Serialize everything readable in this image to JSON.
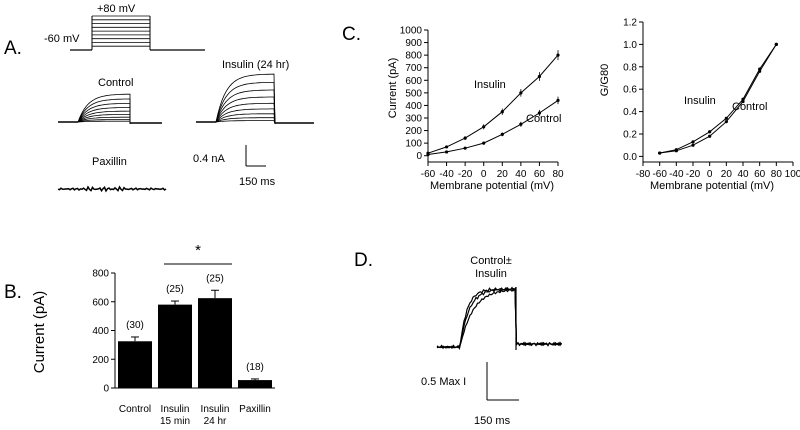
{
  "panels": {
    "A": {
      "letter": "A.",
      "protocol": {
        "step_label": "+80 mV",
        "hold_label": "-60 mV"
      },
      "traces": {
        "control": "Control",
        "insulin": "Insulin (24 hr)",
        "paxillin": "Paxillin"
      },
      "scale_bar": {
        "current": "0.4 nA",
        "time": "150 ms"
      }
    },
    "B": {
      "letter": "B.",
      "significance": "*"
    },
    "C": {
      "letter": "C."
    },
    "D": {
      "letter": "D.",
      "label_line1": "Control±",
      "label_line2": "Insulin",
      "scale_bar": {
        "amplitude": "0.5 Max I",
        "time": "150 ms"
      }
    }
  },
  "colors": {
    "ink": "#000000",
    "bar_fill": "#000000",
    "background": "#ffffff"
  },
  "chart_data": [
    {
      "id": "panel-b",
      "type": "bar",
      "categories": [
        "Control",
        "Insulin 15 min",
        "Insulin 24 hr",
        "Paxillin"
      ],
      "category_lines": [
        [
          "Control"
        ],
        [
          "Insulin",
          "15 min"
        ],
        [
          "Insulin",
          "24 hr"
        ],
        [
          "Paxillin"
        ]
      ],
      "values": [
        325,
        580,
        625,
        55
      ],
      "errors": [
        30,
        25,
        55,
        8
      ],
      "n_labels": [
        "(30)",
        "(25)",
        "(25)",
        "(18)"
      ],
      "ylabel": "Current (pA)",
      "ylim": [
        0,
        800
      ],
      "yticks": [
        0,
        200,
        400,
        600,
        800
      ],
      "grid": false
    },
    {
      "id": "panel-c-current",
      "type": "line",
      "xlabel": "Membrane potential (mV)",
      "ylabel": "Current (pA)",
      "xlim": [
        -60,
        80
      ],
      "ylim": [
        -50,
        1000
      ],
      "xticks": [
        -60,
        -40,
        -20,
        0,
        20,
        40,
        60,
        80
      ],
      "yticks": [
        0,
        100,
        200,
        300,
        400,
        500,
        600,
        700,
        800,
        900,
        1000
      ],
      "x": [
        -60,
        -40,
        -20,
        0,
        20,
        40,
        60,
        80
      ],
      "series": [
        {
          "name": "Insulin",
          "values": [
            20,
            70,
            140,
            230,
            350,
            500,
            630,
            800
          ],
          "errors": [
            8,
            10,
            15,
            20,
            25,
            30,
            35,
            40
          ]
        },
        {
          "name": "Control",
          "values": [
            10,
            30,
            60,
            100,
            170,
            250,
            340,
            440
          ],
          "errors": [
            5,
            8,
            10,
            12,
            15,
            20,
            25,
            30
          ]
        }
      ],
      "grid": false
    },
    {
      "id": "panel-c-conductance",
      "type": "line",
      "xlabel": "Membrane potential (mV)",
      "ylabel": "G/G80",
      "xlim": [
        -80,
        100
      ],
      "ylim": [
        -0.05,
        1.2
      ],
      "xticks": [
        -80,
        -60,
        -40,
        -20,
        0,
        20,
        40,
        60,
        80,
        100
      ],
      "yticks": [
        0.0,
        0.2,
        0.4,
        0.6,
        0.8,
        1.0,
        1.2
      ],
      "x": [
        -60,
        -40,
        -20,
        0,
        20,
        40,
        60,
        80
      ],
      "series": [
        {
          "name": "Insulin",
          "values": [
            0.03,
            0.06,
            0.13,
            0.22,
            0.34,
            0.51,
            0.78,
            1.0
          ]
        },
        {
          "name": "Control",
          "values": [
            0.03,
            0.05,
            0.1,
            0.18,
            0.31,
            0.49,
            0.76,
            1.0
          ]
        }
      ],
      "grid": false
    }
  ]
}
